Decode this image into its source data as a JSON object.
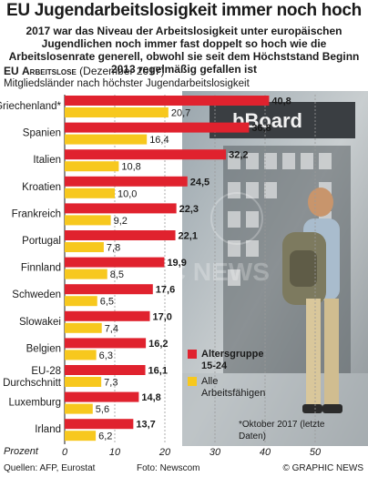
{
  "title": "EU Jugendarbeitslosigkeit immer noch hoch",
  "subtitle": "2017 war das Niveau der Arbeitslosigkeit unter europäischen Jugendlichen noch immer fast doppelt so hoch wie die Arbeitslosenrate generell, obwohl sie seit dem Höchststand Beginn 2013 regelmäßig gefallen ist",
  "section": {
    "prefix": "EU",
    "label": "Arbeitslose",
    "date": "(Dezember 2017)",
    "sub": "Mitgliedsländer nach höchster Jugendarbeitslosigkeit"
  },
  "legend": {
    "youth": "Altersgruppe 15-24",
    "all_line1": "Alle",
    "all_line2": "Arbeitsfähigen"
  },
  "note": "*Oktober 2017 (letzte Daten)",
  "axis_label": "Prozent",
  "footer": {
    "sources": "Quellen: AFP, Eurostat",
    "photo": "Foto: Newscom",
    "credit": "© GRAPHIC NEWS"
  },
  "colors": {
    "youth": "#e0222e",
    "all": "#f7c81e",
    "text": "#1a1a1a"
  },
  "chart_data": {
    "type": "bar",
    "orientation": "horizontal",
    "categories": [
      "Griechenland*",
      "Spanien",
      "Italien",
      "Kroatien",
      "Frankreich",
      "Portugal",
      "Finnland",
      "Schweden",
      "Slowakei",
      "Belgien",
      "EU-28 Durchschnitt",
      "Luxemburg",
      "Irland"
    ],
    "series": [
      {
        "name": "Altersgruppe 15-24",
        "values": [
          40.8,
          36.8,
          32.2,
          24.5,
          22.3,
          22.1,
          19.9,
          17.6,
          17.0,
          16.2,
          16.1,
          14.8,
          13.7
        ]
      },
      {
        "name": "Alle Arbeitsfähigen",
        "values": [
          20.7,
          16.4,
          10.8,
          10.0,
          9.2,
          7.8,
          8.5,
          6.5,
          7.4,
          6.3,
          7.3,
          5.6,
          6.2
        ]
      }
    ],
    "value_labels": {
      "youth": [
        "40,8",
        "36,8",
        "32,2",
        "24,5",
        "22,3",
        "22,1",
        "19,9",
        "17,6",
        "17,0",
        "16,2",
        "16,1",
        "14,8",
        "13,7"
      ],
      "all": [
        "20,7",
        "16,4",
        "10,8",
        "10,0",
        "9,2",
        "7,8",
        "8,5",
        "6,5",
        "7,4",
        "6,3",
        "7,3",
        "5,6",
        "6,2"
      ]
    },
    "xlabel": "Prozent",
    "xlim": [
      0,
      55
    ],
    "xticks": [
      0,
      10,
      20,
      30,
      40,
      50
    ],
    "xtick_labels": [
      "0",
      "10",
      "20",
      "30",
      "40",
      "50"
    ]
  }
}
